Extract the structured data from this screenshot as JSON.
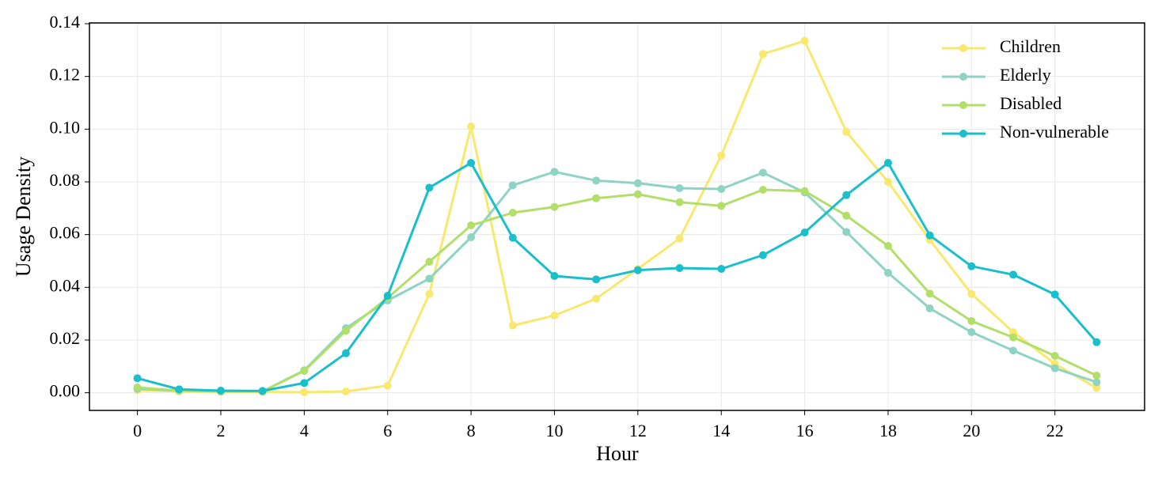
{
  "chart_data": {
    "type": "line",
    "x_label": "Hour",
    "y_label": "Usage Density",
    "x": [
      0,
      1,
      2,
      3,
      4,
      5,
      6,
      7,
      8,
      9,
      10,
      11,
      12,
      13,
      14,
      15,
      16,
      17,
      18,
      19,
      20,
      21,
      22,
      23
    ],
    "series": [
      {
        "name": "Children",
        "color": "#f9e86e",
        "values": [
          0.001,
          0.0005,
          0.0003,
          0.0003,
          0.0002,
          0.0005,
          0.0027,
          0.0375,
          0.101,
          0.0255,
          0.0293,
          0.0357,
          0.047,
          0.0585,
          0.09,
          0.1285,
          0.1335,
          0.099,
          0.08,
          0.058,
          0.0375,
          0.023,
          0.011,
          0.0018
        ]
      },
      {
        "name": "Elderly",
        "color": "#8fd3c5",
        "values": [
          0.0015,
          0.0008,
          0.0005,
          0.0005,
          0.0085,
          0.0245,
          0.035,
          0.0433,
          0.059,
          0.0787,
          0.0838,
          0.0805,
          0.0795,
          0.0776,
          0.0773,
          0.0835,
          0.076,
          0.061,
          0.0455,
          0.032,
          0.023,
          0.016,
          0.0093,
          0.004
        ]
      },
      {
        "name": "Disabled",
        "color": "#b2df6a",
        "values": [
          0.002,
          0.0008,
          0.0005,
          0.0005,
          0.0083,
          0.0235,
          0.036,
          0.0497,
          0.0635,
          0.0683,
          0.0705,
          0.0738,
          0.0753,
          0.0723,
          0.0709,
          0.077,
          0.0765,
          0.0672,
          0.0557,
          0.0376,
          0.0272,
          0.021,
          0.014,
          0.0065
        ]
      },
      {
        "name": "Non-vulnerable",
        "color": "#1bbecb",
        "values": [
          0.0055,
          0.0013,
          0.0008,
          0.0007,
          0.0037,
          0.015,
          0.0368,
          0.0778,
          0.0872,
          0.0588,
          0.0443,
          0.043,
          0.0465,
          0.0473,
          0.047,
          0.0522,
          0.0608,
          0.075,
          0.0872,
          0.0597,
          0.048,
          0.0448,
          0.0373,
          0.0192
        ]
      }
    ],
    "xlim": [
      -1.15,
      24.15
    ],
    "xticks": [
      0,
      2,
      4,
      6,
      8,
      10,
      12,
      14,
      16,
      18,
      20,
      22
    ],
    "ylim": [
      -0.0067,
      0.1403
    ],
    "yticks": [
      {
        "value": 0,
        "label": "0.00"
      },
      {
        "value": 0.02,
        "label": "0.02"
      },
      {
        "value": 0.04,
        "label": "0.04"
      },
      {
        "value": 0.06,
        "label": "0.06"
      },
      {
        "value": 0.08,
        "label": "0.08"
      },
      {
        "value": 0.1,
        "label": "0.10"
      },
      {
        "value": 0.12,
        "label": "0.12"
      },
      {
        "value": 0.14,
        "label": "0.14"
      }
    ],
    "grid": true,
    "legend": "upper right"
  }
}
